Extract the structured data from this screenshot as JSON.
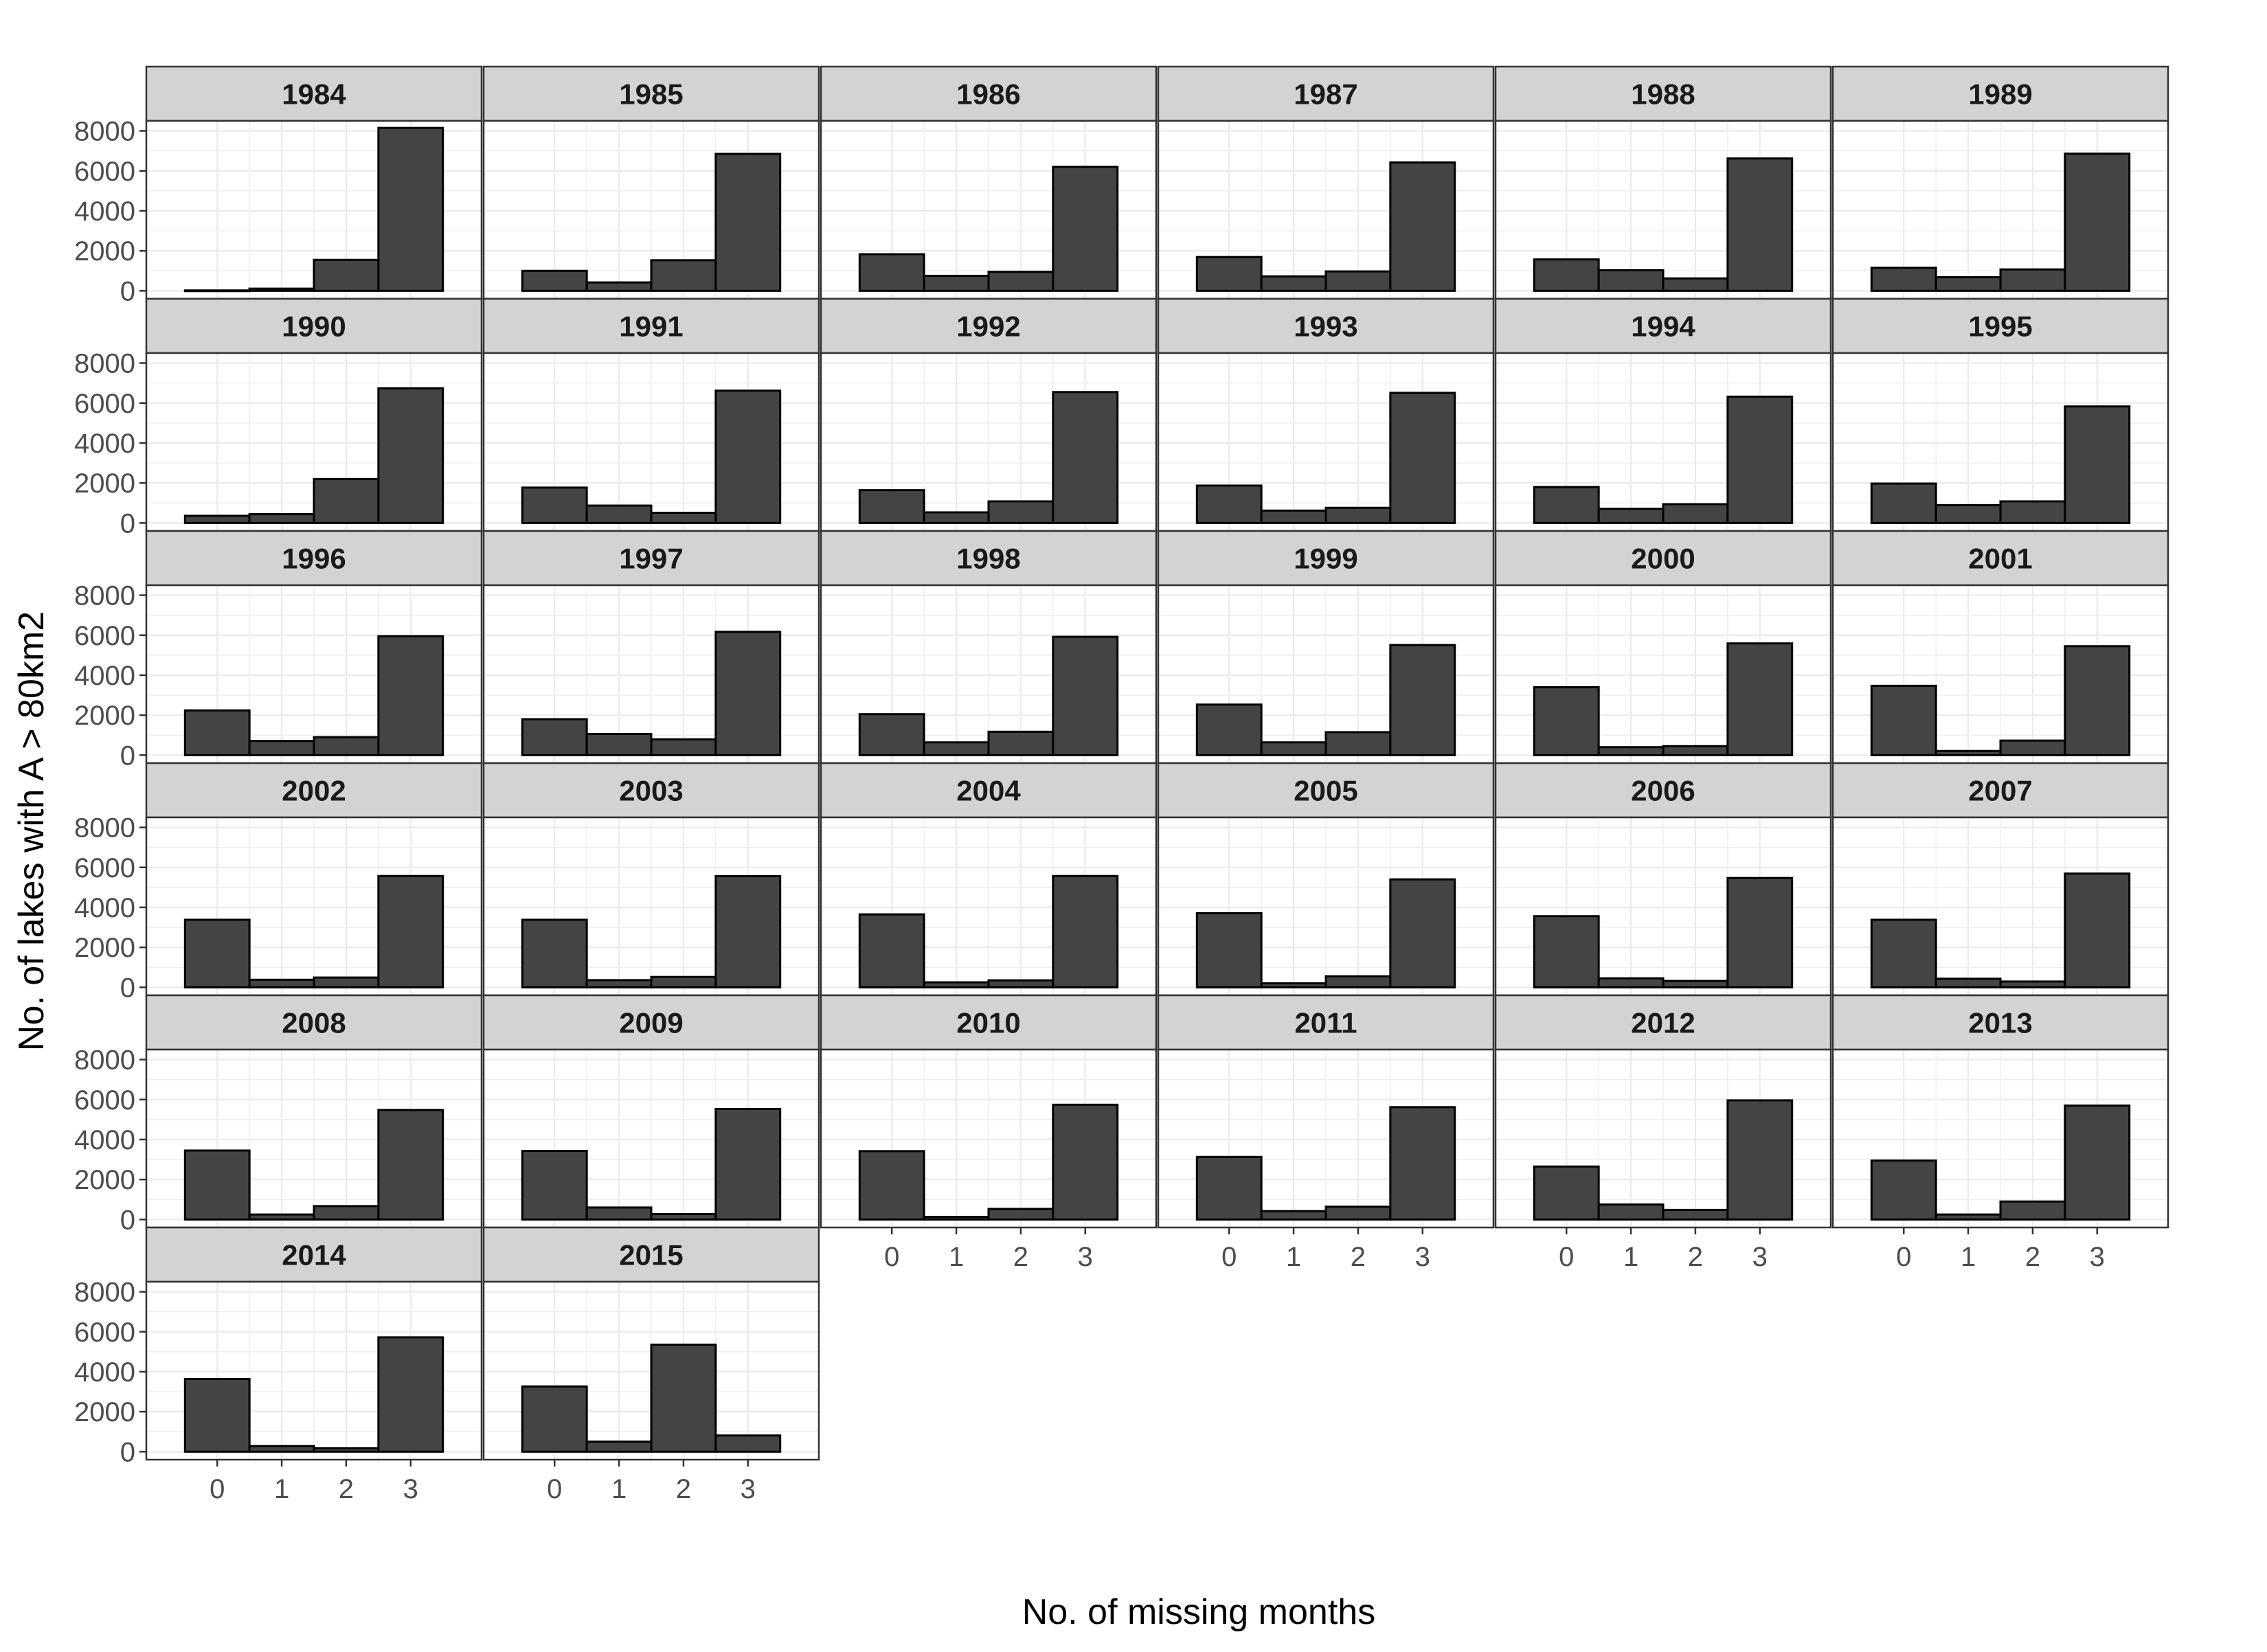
{
  "chart_data": {
    "type": "bar",
    "title": "",
    "xlabel": "No. of missing months",
    "ylabel": "No. of lakes with A > 80km2",
    "categories": [
      "0",
      "1",
      "2",
      "3"
    ],
    "yticks": [
      0,
      2000,
      4000,
      6000,
      8000
    ],
    "ylim": [
      -400,
      8500
    ],
    "columns": 6,
    "grid": true,
    "legend": "none",
    "colors": {
      "bar_fill": "#444444",
      "bar_stroke": "#000000",
      "strip_fill": "#d3d3d3",
      "panel_border": "#333333",
      "grid": "#ebebeb"
    },
    "panels": [
      {
        "label": "1984",
        "values": [
          20,
          110,
          1550,
          8150
        ]
      },
      {
        "label": "1985",
        "values": [
          1000,
          420,
          1530,
          6850
        ]
      },
      {
        "label": "1986",
        "values": [
          1830,
          750,
          950,
          6200
        ]
      },
      {
        "label": "1987",
        "values": [
          1690,
          720,
          970,
          6420
        ]
      },
      {
        "label": "1988",
        "values": [
          1570,
          1030,
          620,
          6620
        ]
      },
      {
        "label": "1989",
        "values": [
          1150,
          680,
          1070,
          6860
        ]
      },
      {
        "label": "1990",
        "values": [
          360,
          440,
          2200,
          6740
        ]
      },
      {
        "label": "1991",
        "values": [
          1770,
          870,
          510,
          6620
        ]
      },
      {
        "label": "1992",
        "values": [
          1640,
          530,
          1080,
          6550
        ]
      },
      {
        "label": "1993",
        "values": [
          1870,
          620,
          760,
          6510
        ]
      },
      {
        "label": "1994",
        "values": [
          1800,
          710,
          940,
          6320
        ]
      },
      {
        "label": "1995",
        "values": [
          1970,
          890,
          1080,
          5830
        ]
      },
      {
        "label": "1996",
        "values": [
          2240,
          710,
          900,
          5950
        ]
      },
      {
        "label": "1997",
        "values": [
          1800,
          1060,
          790,
          6170
        ]
      },
      {
        "label": "1998",
        "values": [
          2050,
          640,
          1170,
          5920
        ]
      },
      {
        "label": "1999",
        "values": [
          2530,
          640,
          1150,
          5510
        ]
      },
      {
        "label": "2000",
        "values": [
          3400,
          400,
          450,
          5590
        ]
      },
      {
        "label": "2001",
        "values": [
          3470,
          210,
          730,
          5450
        ]
      },
      {
        "label": "2002",
        "values": [
          3380,
          380,
          490,
          5570
        ]
      },
      {
        "label": "2003",
        "values": [
          3380,
          360,
          520,
          5560
        ]
      },
      {
        "label": "2004",
        "values": [
          3650,
          250,
          350,
          5570
        ]
      },
      {
        "label": "2005",
        "values": [
          3710,
          200,
          550,
          5400
        ]
      },
      {
        "label": "2006",
        "values": [
          3560,
          450,
          320,
          5470
        ]
      },
      {
        "label": "2007",
        "values": [
          3380,
          430,
          290,
          5690
        ]
      },
      {
        "label": "2008",
        "values": [
          3450,
          250,
          670,
          5480
        ]
      },
      {
        "label": "2009",
        "values": [
          3430,
          600,
          270,
          5530
        ]
      },
      {
        "label": "2010",
        "values": [
          3420,
          130,
          530,
          5740
        ]
      },
      {
        "label": "2011",
        "values": [
          3130,
          420,
          640,
          5620
        ]
      },
      {
        "label": "2012",
        "values": [
          2650,
          750,
          480,
          5960
        ]
      },
      {
        "label": "2013",
        "values": [
          2950,
          250,
          900,
          5700
        ]
      },
      {
        "label": "2014",
        "values": [
          3640,
          280,
          170,
          5720
        ]
      },
      {
        "label": "2015",
        "values": [
          3260,
          500,
          5350,
          810
        ]
      }
    ]
  }
}
